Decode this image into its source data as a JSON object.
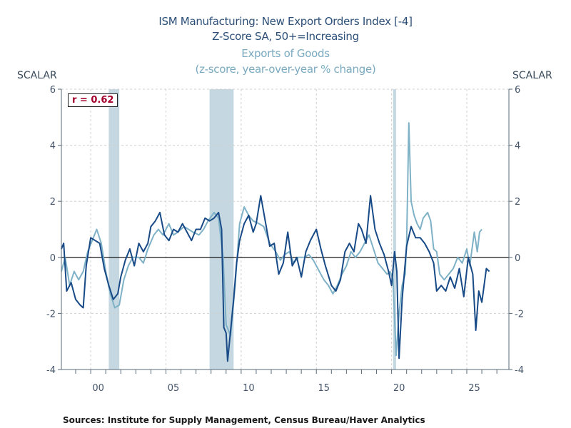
{
  "chart_data": {
    "type": "line",
    "title": "ISM Manufacturing: New Export Orders Index [-4]",
    "subtitle": "Z-Score  SA, 50+=Increasing",
    "title2": "Exports of Goods",
    "subtitle2": "(z-score, year-over-year % change)",
    "ylabel_left": "SCALAR",
    "ylabel_right": "SCALAR",
    "ylim": [
      -4,
      6
    ],
    "yticks": [
      -4,
      -2,
      0,
      2,
      4,
      6
    ],
    "xlim": [
      1998.05,
      2027.8
    ],
    "xtick_labels": [
      {
        "year": 2000,
        "label": "00"
      },
      {
        "year": 2005,
        "label": "05"
      },
      {
        "year": 2010,
        "label": "10"
      },
      {
        "year": 2015,
        "label": "15"
      },
      {
        "year": 2020,
        "label": "20"
      },
      {
        "year": 2025,
        "label": "25"
      }
    ],
    "grid": true,
    "annotation": "r = 0.62",
    "recessions": [
      [
        2001.2,
        2001.9
      ],
      [
        2007.9,
        2009.5
      ],
      [
        2020.1,
        2020.3
      ]
    ],
    "colors": {
      "ism": "#174a86",
      "exports": "#7fb1c7",
      "recession": "#c5d8e2",
      "annotation": "#a3002c"
    },
    "series": [
      {
        "key": "ism",
        "x": [
          1998.05,
          1998.2,
          1998.4,
          1998.7,
          1999.0,
          1999.3,
          1999.5,
          1999.7,
          2000.0,
          2000.3,
          2000.6,
          2000.9,
          2001.2,
          2001.5,
          2001.8,
          2002.0,
          2002.3,
          2002.6,
          2002.9,
          2003.2,
          2003.5,
          2003.8,
          2004.0,
          2004.3,
          2004.6,
          2004.9,
          2005.2,
          2005.5,
          2005.8,
          2006.1,
          2006.4,
          2006.7,
          2007.0,
          2007.3,
          2007.6,
          2007.9,
          2008.2,
          2008.5,
          2008.7,
          2008.85,
          2009.0,
          2009.1,
          2009.3,
          2009.5,
          2009.7,
          2009.9,
          2010.2,
          2010.5,
          2010.8,
          2011.0,
          2011.3,
          2011.6,
          2011.9,
          2012.2,
          2012.5,
          2012.8,
          2013.1,
          2013.4,
          2013.7,
          2014.0,
          2014.3,
          2014.6,
          2015.0,
          2015.3,
          2015.6,
          2016.0,
          2016.3,
          2016.6,
          2016.9,
          2017.2,
          2017.5,
          2017.8,
          2018.0,
          2018.3,
          2018.6,
          2018.9,
          2019.2,
          2019.5,
          2019.8,
          2020.0,
          2020.2,
          2020.35,
          2020.5,
          2020.7,
          2021.0,
          2021.3,
          2021.6,
          2021.9,
          2022.2,
          2022.5,
          2022.8,
          2023.0,
          2023.3,
          2023.6,
          2023.9,
          2024.2,
          2024.5,
          2024.8,
          2025.1,
          2025.4,
          2025.6,
          2025.8,
          2026.0,
          2026.3,
          2026.5
        ],
        "values": [
          0.3,
          0.5,
          -1.2,
          -0.9,
          -1.5,
          -1.7,
          -1.8,
          -0.3,
          0.7,
          0.6,
          0.5,
          -0.4,
          -1.0,
          -1.5,
          -1.3,
          -0.7,
          -0.1,
          0.3,
          -0.3,
          0.5,
          0.2,
          0.5,
          1.1,
          1.3,
          1.6,
          0.8,
          0.6,
          1.0,
          0.9,
          1.2,
          0.9,
          0.6,
          1.0,
          1.0,
          1.4,
          1.3,
          1.4,
          1.6,
          1.0,
          -2.5,
          -2.7,
          -3.7,
          -2.6,
          -1.5,
          -0.2,
          0.6,
          1.2,
          1.5,
          0.9,
          1.2,
          2.2,
          1.3,
          0.4,
          0.5,
          -0.6,
          -0.2,
          0.9,
          -0.3,
          0.0,
          -0.7,
          0.2,
          0.6,
          1.0,
          0.3,
          -0.3,
          -1.0,
          -1.2,
          -0.8,
          0.2,
          0.5,
          0.2,
          1.2,
          1.0,
          0.5,
          2.2,
          1.0,
          0.5,
          0.1,
          -0.5,
          -1.0,
          0.2,
          -0.5,
          -3.6,
          -1.5,
          0.4,
          1.1,
          0.7,
          0.7,
          0.5,
          0.2,
          -0.2,
          -1.2,
          -1.0,
          -1.2,
          -0.7,
          -1.1,
          -0.4,
          -1.4,
          0.0,
          -0.6,
          -2.6,
          -1.2,
          -1.6,
          -0.4,
          -0.5
        ]
      },
      {
        "key": "exports",
        "x": [
          1998.05,
          1998.3,
          1998.6,
          1998.9,
          1999.2,
          1999.5,
          1999.8,
          2000.1,
          2000.4,
          2000.7,
          2001.0,
          2001.3,
          2001.6,
          2001.9,
          2002.2,
          2002.5,
          2002.8,
          2003.2,
          2003.5,
          2003.8,
          2004.2,
          2004.5,
          2004.8,
          2005.2,
          2005.5,
          2005.8,
          2006.2,
          2006.5,
          2006.8,
          2007.2,
          2007.5,
          2007.8,
          2008.2,
          2008.5,
          2008.8,
          2009.0,
          2009.3,
          2009.6,
          2009.9,
          2010.2,
          2010.5,
          2010.8,
          2011.2,
          2011.5,
          2011.9,
          2012.3,
          2012.6,
          2012.9,
          2013.2,
          2013.5,
          2013.8,
          2014.2,
          2014.5,
          2014.8,
          2015.2,
          2015.5,
          2015.8,
          2016.1,
          2016.4,
          2016.7,
          2017.0,
          2017.3,
          2017.6,
          2017.9,
          2018.2,
          2018.5,
          2018.8,
          2019.1,
          2019.4,
          2019.7,
          2019.9,
          2020.1,
          2020.3,
          2020.5,
          2020.7,
          2020.9,
          2021.0,
          2021.15,
          2021.3,
          2021.5,
          2021.7,
          2021.9,
          2022.1,
          2022.4,
          2022.6,
          2022.8,
          2023.0,
          2023.2,
          2023.5,
          2023.8,
          2024.1,
          2024.4,
          2024.7,
          2025.0,
          2025.2,
          2025.5,
          2025.7,
          2025.85,
          2026.0
        ],
        "values": [
          -0.5,
          0.0,
          -1.0,
          -0.5,
          -0.8,
          -0.5,
          0.2,
          0.6,
          1.0,
          0.5,
          -0.5,
          -1.3,
          -1.8,
          -1.7,
          -0.8,
          -0.3,
          0.0,
          0.0,
          -0.2,
          0.3,
          0.8,
          1.0,
          0.8,
          1.2,
          0.8,
          0.9,
          1.1,
          1.0,
          0.9,
          0.8,
          1.0,
          1.3,
          1.6,
          1.4,
          0.0,
          -2.4,
          -2.8,
          -1.0,
          1.2,
          1.8,
          1.5,
          1.3,
          1.2,
          1.1,
          0.5,
          0.2,
          -0.1,
          0.1,
          0.2,
          -0.2,
          0.0,
          0.0,
          0.1,
          -0.1,
          -0.5,
          -0.8,
          -1.0,
          -1.3,
          -1.0,
          -0.6,
          -0.3,
          0.2,
          0.0,
          0.2,
          0.5,
          0.8,
          0.3,
          -0.2,
          -0.4,
          -0.6,
          -0.5,
          -0.8,
          -3.5,
          -2.0,
          -1.0,
          -0.6,
          0.5,
          4.8,
          2.0,
          1.5,
          1.2,
          1.0,
          1.4,
          1.6,
          1.3,
          0.3,
          0.2,
          -0.6,
          -0.8,
          -0.6,
          -0.4,
          0.0,
          -0.2,
          0.3,
          -0.3,
          0.9,
          0.2,
          0.9,
          1.0
        ]
      }
    ],
    "source": "Sources:  Institute for Supply Management, Census Bureau/Haver Analytics"
  }
}
